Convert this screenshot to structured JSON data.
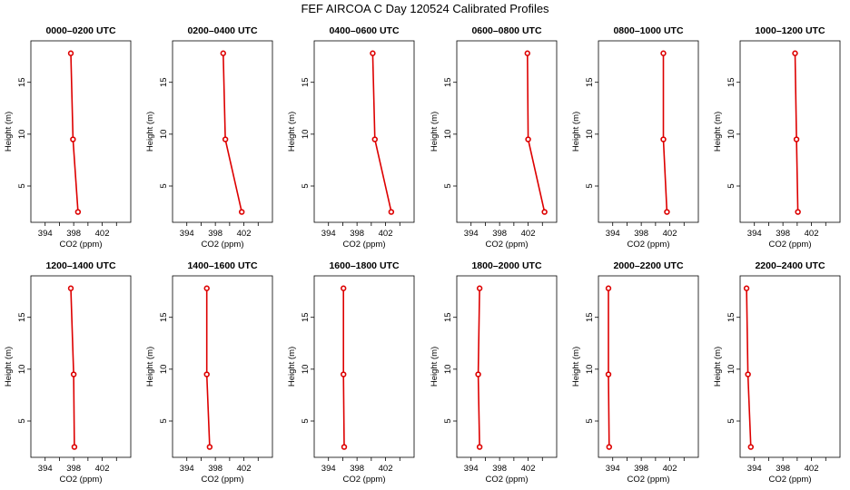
{
  "title": "FEF AIRCOA C  Day 120524  Calibrated Profiles",
  "chart_data": {
    "type": "line",
    "xlabel": "CO2 (ppm)",
    "ylabel": "Height (m)",
    "xlim": [
      392,
      406
    ],
    "ylim": [
      1.5,
      19
    ],
    "xticks": [
      394,
      398,
      402
    ],
    "yticks": [
      5,
      10,
      15
    ],
    "heights": [
      2.5,
      9.5,
      17.8
    ],
    "color": "#dd0000",
    "panels": [
      {
        "title": "0000–0200 UTC",
        "co2": [
          398.6,
          397.9,
          397.6
        ]
      },
      {
        "title": "0200–0400 UTC",
        "co2": [
          401.7,
          399.4,
          399.1
        ]
      },
      {
        "title": "0400–0600 UTC",
        "co2": [
          402.8,
          400.5,
          400.2
        ]
      },
      {
        "title": "0600–0800 UTC",
        "co2": [
          404.3,
          402.0,
          401.9
        ]
      },
      {
        "title": "0800–1000 UTC",
        "co2": [
          401.6,
          401.1,
          401.1
        ]
      },
      {
        "title": "1000–1200 UTC",
        "co2": [
          400.1,
          399.9,
          399.7
        ]
      },
      {
        "title": "1200–1400 UTC",
        "co2": [
          398.1,
          398.0,
          397.6
        ]
      },
      {
        "title": "1400–1600 UTC",
        "co2": [
          397.2,
          396.8,
          396.8
        ]
      },
      {
        "title": "1600–1800 UTC",
        "co2": [
          396.2,
          396.1,
          396.1
        ]
      },
      {
        "title": "1800–2000 UTC",
        "co2": [
          395.2,
          395.0,
          395.2
        ]
      },
      {
        "title": "2000–2200 UTC",
        "co2": [
          393.5,
          393.4,
          393.4
        ]
      },
      {
        "title": "2200–2400 UTC",
        "co2": [
          393.5,
          393.1,
          392.9
        ]
      }
    ]
  }
}
